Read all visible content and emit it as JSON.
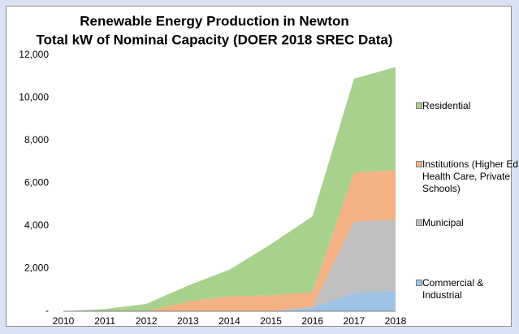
{
  "chart_data": {
    "type": "area",
    "title": "Renewable Energy Production in Newton",
    "subtitle": "Total kW of Nominal Capacity (DOER 2018 SREC Data)",
    "x": [
      2010,
      2011,
      2012,
      2013,
      2014,
      2015,
      2016,
      2017,
      2018
    ],
    "xlim": [
      2010,
      2018
    ],
    "xticks": [
      2010,
      2011,
      2012,
      2013,
      2014,
      2015,
      2016,
      2017,
      2018
    ],
    "ylim": [
      0,
      12000
    ],
    "yticks": [
      {
        "value": 0,
        "label": "-"
      },
      {
        "value": 2000,
        "label": "2,000"
      },
      {
        "value": 4000,
        "label": "4,000"
      },
      {
        "value": 6000,
        "label": "6,000"
      },
      {
        "value": 8000,
        "label": "8,000"
      },
      {
        "value": 10000,
        "label": "10,000"
      },
      {
        "value": 12000,
        "label": "12,000"
      }
    ],
    "stacked": true,
    "legend": "right",
    "series": [
      {
        "name": "Commercial & Industrial",
        "color": "#9dc3e6",
        "values": [
          0,
          0,
          0,
          0,
          0,
          0,
          150,
          850,
          950
        ]
      },
      {
        "name": "Municipal",
        "color": "#bfbfbf",
        "values": [
          0,
          0,
          0,
          0,
          0,
          0,
          50,
          3350,
          3350
        ]
      },
      {
        "name": "Institutions (Higher Ed., Health Care, Private Schools)",
        "color": "#f4b183",
        "values": [
          0,
          0,
          0,
          450,
          700,
          750,
          700,
          2300,
          2300
        ]
      },
      {
        "name": "Residential",
        "color": "#a9d18e",
        "values": [
          0,
          100,
          350,
          750,
          1250,
          2400,
          3550,
          4400,
          4850
        ]
      }
    ]
  }
}
